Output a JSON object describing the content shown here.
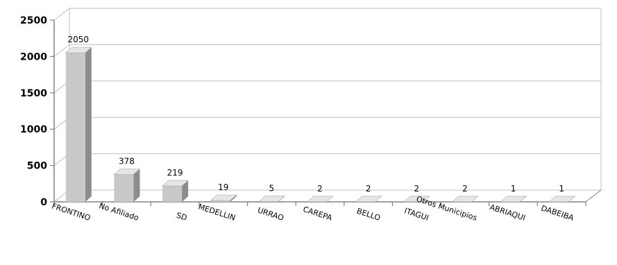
{
  "chart_data": {
    "type": "bar",
    "style": "3d-column",
    "categories": [
      "FRONTINO",
      "No Afiliado",
      "SD",
      "MEDELLIN",
      "URRAO",
      "CAREPA",
      "BELLO",
      "ITAGUI",
      "Otros Municipios",
      "ABRIAQUI",
      "DABEIBA"
    ],
    "values": [
      2050,
      378,
      219,
      19,
      5,
      2,
      2,
      2,
      2,
      1,
      1
    ],
    "data_labels": [
      "2050",
      "378",
      "219",
      "19",
      "5",
      "2",
      "2",
      "2",
      "2",
      "1",
      "1"
    ],
    "yticks": [
      "0",
      "500",
      "1000",
      "1500",
      "2000",
      "2500"
    ],
    "ylim": [
      0,
      2500
    ],
    "grid": true,
    "legend": "none",
    "colors": {
      "bar_front": "#c8c8c8",
      "bar_side": "#8c8c8c",
      "bar_top": "#e6e6e6",
      "grid": "#bfbfbf",
      "axis": "#808080"
    }
  }
}
